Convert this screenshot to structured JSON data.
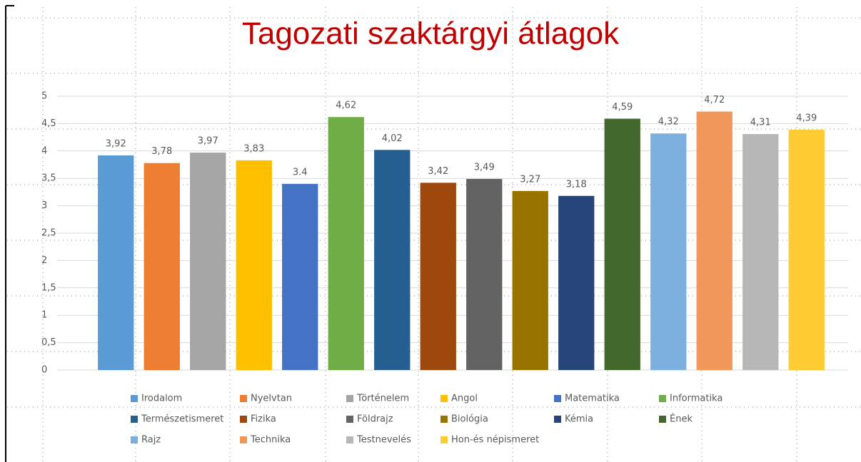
{
  "chart_data": {
    "type": "bar",
    "title": "Tagozati szaktárgyi átlagok",
    "ylim": [
      0,
      5
    ],
    "yticks": [
      0,
      {
        "value": 0.5,
        "label": "0,5"
      },
      1,
      {
        "value": 1.5,
        "label": "1,5"
      },
      2,
      {
        "value": 2.5,
        "label": "2,5"
      },
      3,
      {
        "value": 3.5,
        "label": "3,5"
      },
      4,
      {
        "value": 4.5,
        "label": "4,5"
      },
      5
    ],
    "grid": true,
    "series": [
      {
        "name": "Irodalom",
        "color": "#5b9bd5",
        "values": [
          3.92
        ],
        "value_labels": [
          "3,92"
        ]
      },
      {
        "name": "Nyelvtan",
        "color": "#ed7d31",
        "values": [
          3.78
        ],
        "value_labels": [
          "3,78"
        ]
      },
      {
        "name": "Történelem",
        "color": "#a5a5a5",
        "values": [
          3.97
        ],
        "value_labels": [
          "3,97"
        ]
      },
      {
        "name": "Angol",
        "color": "#ffc000",
        "values": [
          3.83
        ],
        "value_labels": [
          "3,83"
        ]
      },
      {
        "name": "Matematika",
        "color": "#4472c4",
        "values": [
          3.4
        ]
      },
      {
        "name": "Informatika",
        "color": "#70ad47",
        "values": [
          4.62
        ],
        "value_labels": [
          "4,62"
        ]
      },
      {
        "name": "Természetismeret",
        "color": "#255e91",
        "values": [
          4.02
        ],
        "value_labels": [
          "4,02"
        ]
      },
      {
        "name": "Fizika",
        "color": "#9e480e",
        "values": [
          3.42
        ],
        "value_labels": [
          "3,42"
        ]
      },
      {
        "name": "Földrajz",
        "color": "#636363",
        "values": [
          3.49
        ],
        "value_labels": [
          "3,49"
        ]
      },
      {
        "name": "Biológia",
        "color": "#997300",
        "values": [
          3.27
        ],
        "value_labels": [
          "3,27"
        ]
      },
      {
        "name": "Kémia",
        "color": "#264478",
        "values": [
          3.18
        ],
        "value_labels": [
          "3,18"
        ]
      },
      {
        "name": "Ének",
        "color": "#43682b",
        "values": [
          4.59
        ],
        "value_labels": [
          "4,59"
        ]
      },
      {
        "name": "Rajz",
        "color": "#7cafdd",
        "values": [
          4.32
        ],
        "value_labels": [
          "4,32"
        ]
      },
      {
        "name": "Technika",
        "color": "#f1975a",
        "values": [
          4.72
        ],
        "value_labels": [
          "4,72"
        ]
      },
      {
        "name": "Testnevelés",
        "color": "#b7b7b7",
        "values": [
          4.31
        ],
        "value_labels": [
          "4,31"
        ]
      },
      {
        "name": "Hon-és népismeret",
        "color": "#ffcd33",
        "values": [
          4.39
        ],
        "value_labels": [
          "4,39"
        ]
      }
    ]
  }
}
